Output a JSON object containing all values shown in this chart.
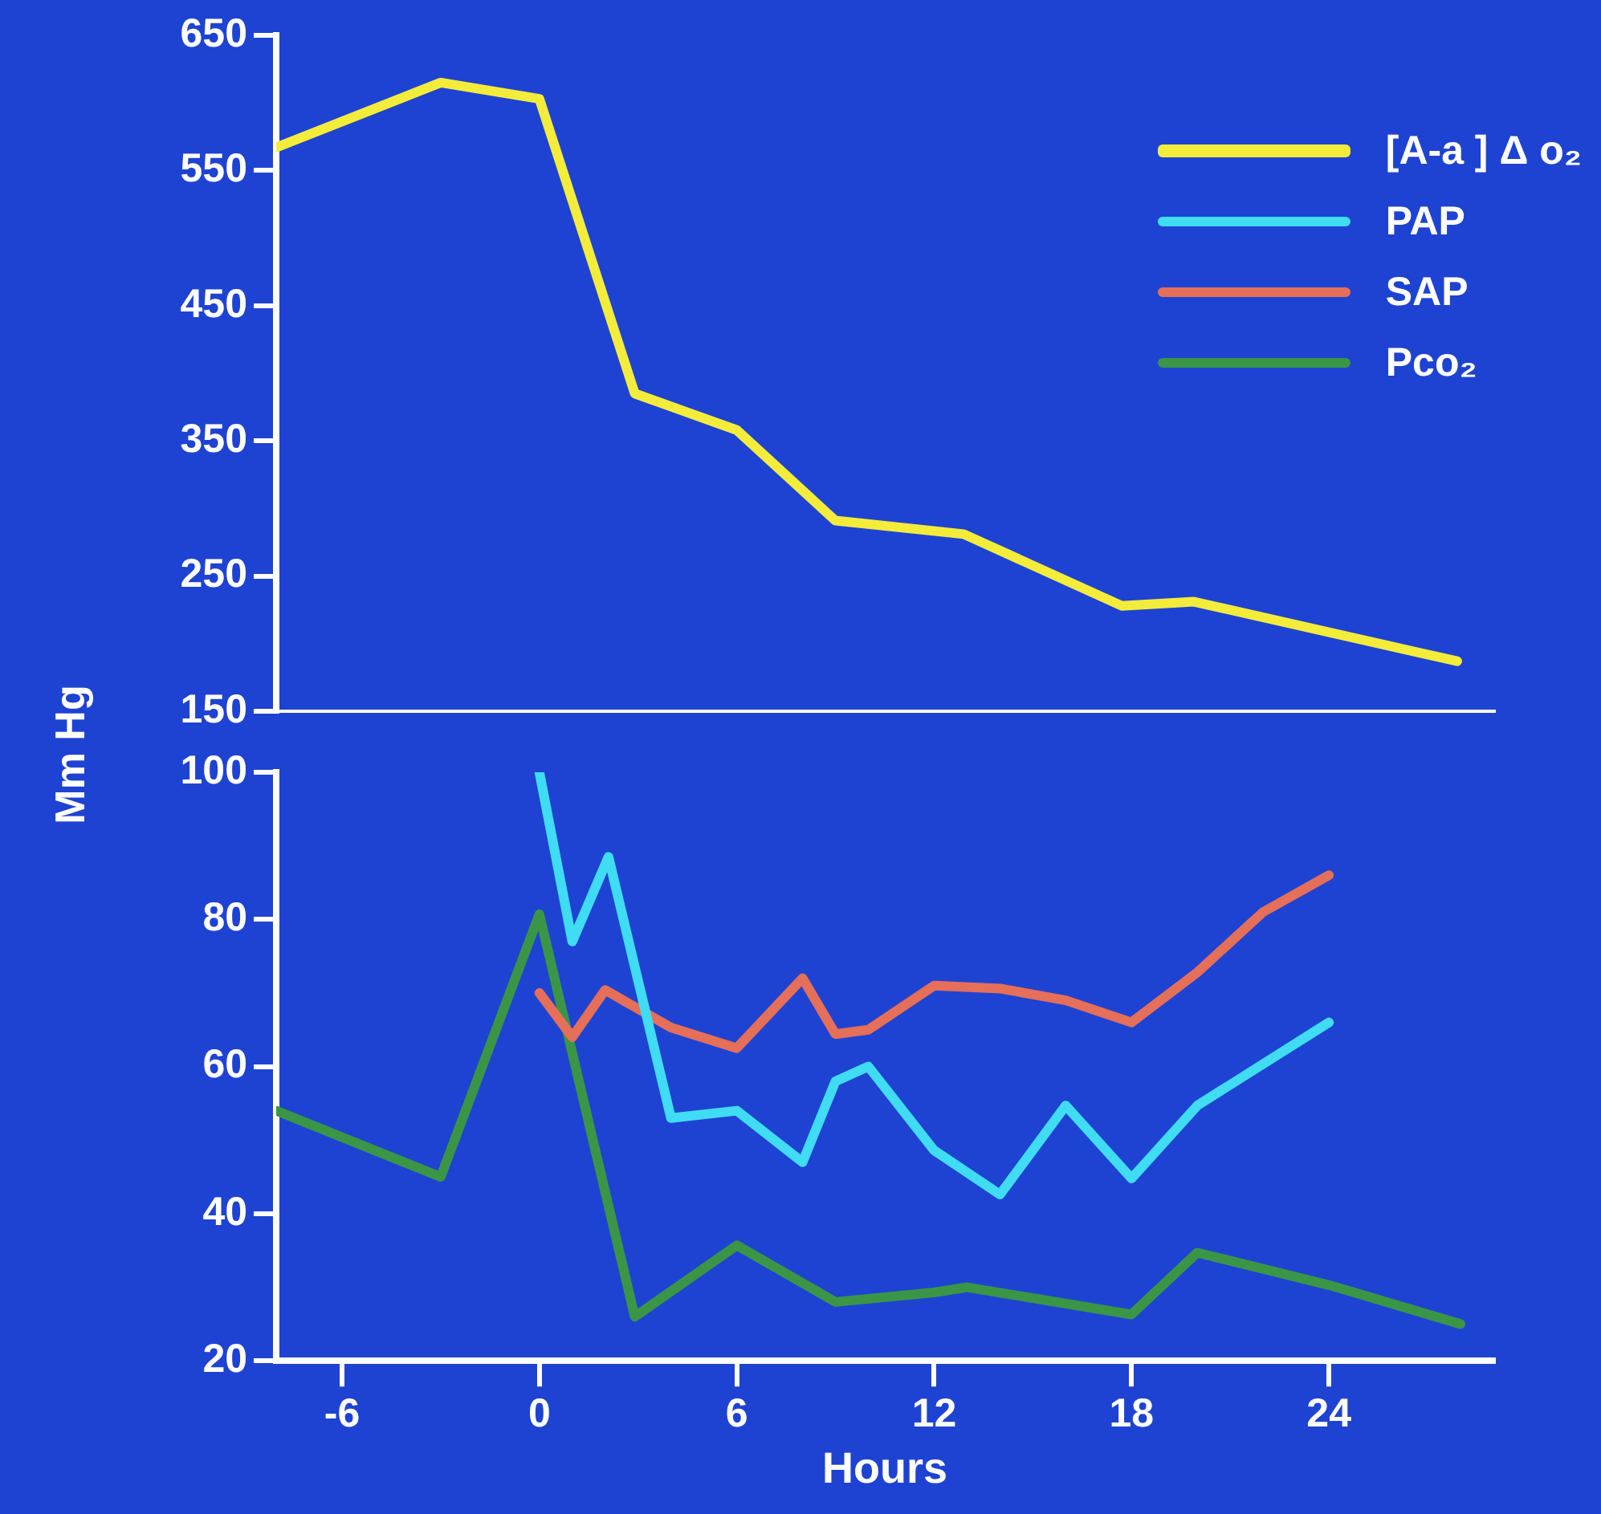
{
  "chart_data": [
    {
      "type": "line",
      "x": [
        -8,
        -3,
        0,
        2.9,
        6,
        9,
        12.9,
        17.7,
        19.9,
        27.9
      ],
      "xlim": [
        -8,
        29
      ],
      "ylim": [
        150,
        650
      ],
      "yticks": [
        150,
        250,
        350,
        450,
        550,
        650
      ],
      "tick_labels": "y",
      "legend": "top right",
      "grid": false,
      "marker": "none",
      "series": [
        {
          "name": "[A-a ] Δ o₂",
          "color": "#f4ec3a",
          "values": [
            567,
            615,
            603,
            385,
            358,
            291,
            281,
            228,
            231,
            187
          ]
        }
      ]
    },
    {
      "type": "line",
      "xlim": [
        -8,
        29
      ],
      "ylim": [
        20,
        100
      ],
      "yticks": [
        20,
        40,
        60,
        80,
        100
      ],
      "xticks": [
        -6,
        0,
        6,
        12,
        18,
        24
      ],
      "xlabel": "Hours",
      "ylabel": "Mm Hg",
      "legend": "top right",
      "grid": false,
      "marker": "none",
      "series": [
        {
          "name": "PAP",
          "color": "#3fdcf4",
          "x": [
            0,
            1,
            2.1,
            4,
            6,
            8,
            9,
            10,
            12,
            14,
            16,
            18,
            20,
            24
          ],
          "values": [
            100,
            77,
            88.5,
            53,
            54,
            47,
            58,
            60,
            48.6,
            42.6,
            54.7,
            44.8,
            54.7,
            66
          ]
        },
        {
          "name": "SAP",
          "color": "#e56f58",
          "x": [
            0,
            1,
            2,
            4,
            6,
            8,
            9,
            10,
            12,
            14,
            16,
            18,
            20,
            22,
            24
          ],
          "values": [
            70,
            64,
            70.4,
            65.3,
            62.5,
            72,
            64.4,
            65,
            71,
            70.6,
            69,
            66,
            72.8,
            81,
            86
          ]
        },
        {
          "name": "Pco₂",
          "color": "#3a9646",
          "x": [
            -8,
            -3,
            0,
            2.9,
            6,
            9,
            12,
            13,
            18,
            20,
            24,
            28
          ],
          "values": [
            54,
            45,
            80.7,
            26,
            35.7,
            28,
            29.3,
            30,
            26.3,
            34.7,
            30.3,
            25
          ]
        }
      ]
    }
  ]
}
